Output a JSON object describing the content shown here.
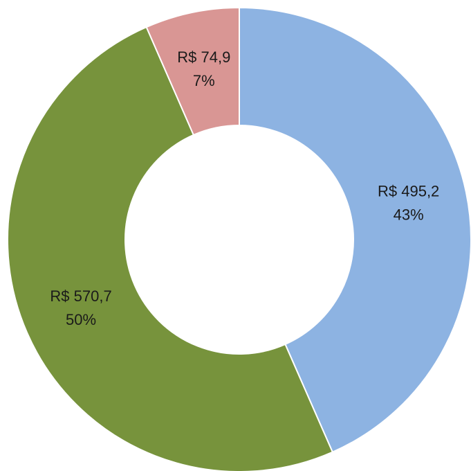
{
  "chart_data": {
    "type": "donut",
    "categories": [
      null,
      null,
      null
    ],
    "values": [
      495.2,
      570.7,
      74.9
    ],
    "value_labels": [
      "R$ 495,2",
      "R$ 570,7",
      "R$ 74,9"
    ],
    "percentages": [
      43,
      50,
      7
    ],
    "percentage_labels": [
      "43%",
      "50%",
      "7%"
    ],
    "colors": [
      "#8db3e2",
      "#77933c",
      "#d99694"
    ]
  }
}
